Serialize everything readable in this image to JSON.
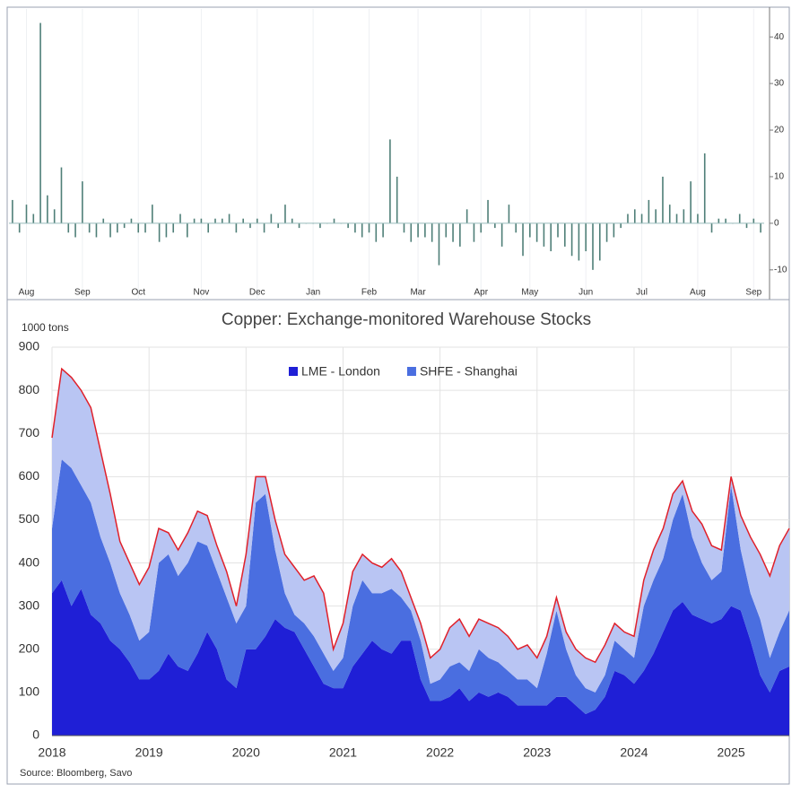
{
  "chart_data": [
    {
      "type": "bar",
      "categories": [
        null,
        null,
        "Aug",
        null,
        null,
        null,
        null,
        null,
        null,
        null,
        "Sep",
        null,
        null,
        null,
        null,
        null,
        null,
        null,
        "Oct",
        null,
        null,
        null,
        null,
        null,
        null,
        null,
        null,
        "Nov",
        null,
        null,
        null,
        null,
        null,
        null,
        null,
        "Dec",
        null,
        null,
        null,
        null,
        null,
        null,
        null,
        "Jan",
        null,
        null,
        null,
        null,
        null,
        null,
        null,
        "Feb",
        null,
        null,
        null,
        null,
        null,
        null,
        "Mar",
        null,
        null,
        null,
        null,
        null,
        null,
        null,
        null,
        "Apr",
        null,
        null,
        null,
        null,
        null,
        null,
        "May",
        null,
        null,
        null,
        null,
        null,
        null,
        null,
        "Jun",
        null,
        null,
        null,
        null,
        null,
        null,
        null,
        "Jul",
        null,
        null,
        null,
        null,
        null,
        null,
        null,
        "Aug",
        null,
        null,
        null,
        null,
        null,
        null,
        null,
        "Sep",
        null
      ],
      "values": [
        5,
        -2,
        4,
        2,
        43,
        6,
        3,
        12,
        -2,
        -3,
        9,
        -2,
        -3,
        1,
        -3,
        -2,
        -1,
        1,
        -2,
        -2,
        4,
        -4,
        -3,
        -2,
        2,
        -3,
        1,
        1,
        -2,
        1,
        1,
        2,
        -2,
        1,
        -1,
        1,
        -2,
        2,
        -1,
        4,
        1,
        -1,
        0,
        0,
        -1,
        0,
        1,
        0,
        -1,
        -2,
        -3,
        -2,
        -4,
        -3,
        18,
        10,
        -2,
        -4,
        -3,
        -3,
        -4,
        -9,
        -3,
        -4,
        -5,
        3,
        -4,
        -2,
        5,
        -1,
        -5,
        4,
        -2,
        -7,
        -3,
        -4,
        -5,
        -6,
        -3,
        -5,
        -7,
        -8,
        -6,
        -10,
        -8,
        -4,
        -3,
        -1,
        2,
        3,
        2,
        5,
        3,
        10,
        4,
        2,
        3,
        9,
        2,
        15,
        -2,
        1,
        1,
        0,
        2,
        -1,
        1,
        -2
      ],
      "color": "#4f7f78",
      "ylim": [
        -16,
        46
      ],
      "yticks": [
        -10,
        0,
        10,
        20,
        30,
        40
      ]
    },
    {
      "type": "stacked-area",
      "title": "Copper: Exchange-monitored Warehouse Stocks",
      "y_label": "1000 tons",
      "source": "Source: Bloomberg, Savo",
      "x": [
        2018,
        2018.1,
        2018.2,
        2018.3,
        2018.4,
        2018.5,
        2018.6,
        2018.7,
        2018.8,
        2018.9,
        2019,
        2019.1,
        2019.2,
        2019.3,
        2019.4,
        2019.5,
        2019.6,
        2019.7,
        2019.8,
        2019.9,
        2020,
        2020.1,
        2020.2,
        2020.3,
        2020.4,
        2020.5,
        2020.6,
        2020.7,
        2020.8,
        2020.9,
        2021,
        2021.1,
        2021.2,
        2021.3,
        2021.4,
        2021.5,
        2021.6,
        2021.7,
        2021.8,
        2021.9,
        2022,
        2022.1,
        2022.2,
        2022.3,
        2022.4,
        2022.5,
        2022.6,
        2022.7,
        2022.8,
        2022.9,
        2023,
        2023.1,
        2023.2,
        2023.3,
        2023.4,
        2023.5,
        2023.6,
        2023.7,
        2023.8,
        2023.9,
        2024,
        2024.1,
        2024.2,
        2024.3,
        2024.4,
        2024.5,
        2024.6,
        2024.7,
        2024.8,
        2024.9,
        2025,
        2025.1,
        2025.2,
        2025.3,
        2025.4,
        2025.5,
        2025.6
      ],
      "series": [
        {
          "name": "LME - London",
          "color": "#1f1fd6",
          "values": [
            330,
            360,
            300,
            340,
            280,
            260,
            220,
            200,
            170,
            130,
            130,
            150,
            190,
            160,
            150,
            190,
            240,
            200,
            130,
            110,
            200,
            200,
            230,
            270,
            250,
            240,
            200,
            160,
            120,
            110,
            110,
            160,
            190,
            220,
            200,
            190,
            220,
            220,
            130,
            80,
            80,
            90,
            110,
            80,
            100,
            90,
            100,
            90,
            70,
            70,
            70,
            70,
            90,
            90,
            70,
            50,
            60,
            90,
            150,
            140,
            120,
            150,
            190,
            240,
            290,
            310,
            280,
            270,
            260,
            270,
            300,
            290,
            220,
            140,
            100,
            150,
            160
          ]
        },
        {
          "name": "SHFE - Shanghai",
          "color": "#4a6ee0",
          "values": [
            150,
            280,
            320,
            240,
            260,
            200,
            180,
            130,
            110,
            90,
            110,
            250,
            230,
            210,
            250,
            260,
            200,
            180,
            190,
            150,
            100,
            340,
            330,
            160,
            80,
            40,
            60,
            70,
            70,
            40,
            70,
            140,
            170,
            110,
            130,
            150,
            100,
            70,
            90,
            40,
            50,
            70,
            60,
            70,
            100,
            90,
            70,
            60,
            60,
            60,
            40,
            120,
            200,
            110,
            70,
            60,
            40,
            50,
            70,
            60,
            60,
            150,
            170,
            170,
            210,
            250,
            180,
            130,
            100,
            110,
            280,
            140,
            110,
            130,
            80,
            90,
            130
          ]
        },
        {
          "color": "#b9c5f3",
          "values": [
            210,
            210,
            210,
            220,
            220,
            200,
            160,
            120,
            120,
            130,
            150,
            80,
            50,
            60,
            70,
            70,
            70,
            60,
            60,
            40,
            120,
            60,
            40,
            70,
            90,
            110,
            100,
            140,
            140,
            50,
            80,
            80,
            60,
            70,
            60,
            70,
            60,
            30,
            40,
            60,
            70,
            90,
            100,
            80,
            70,
            80,
            80,
            80,
            70,
            80,
            70,
            40,
            30,
            40,
            60,
            70,
            70,
            70,
            40,
            40,
            50,
            60,
            70,
            70,
            60,
            30,
            60,
            90,
            80,
            50,
            20,
            80,
            130,
            150,
            190,
            200,
            190
          ]
        }
      ],
      "outline_color": "#e0202a",
      "xlim": [
        2018,
        2025.6
      ],
      "xticks": [
        2018,
        2019,
        2020,
        2021,
        2022,
        2023,
        2024,
        2025
      ],
      "ylim": [
        0,
        900
      ],
      "yticks": [
        0,
        100,
        200,
        300,
        400,
        500,
        600,
        700,
        800,
        900
      ],
      "grid": true
    }
  ]
}
